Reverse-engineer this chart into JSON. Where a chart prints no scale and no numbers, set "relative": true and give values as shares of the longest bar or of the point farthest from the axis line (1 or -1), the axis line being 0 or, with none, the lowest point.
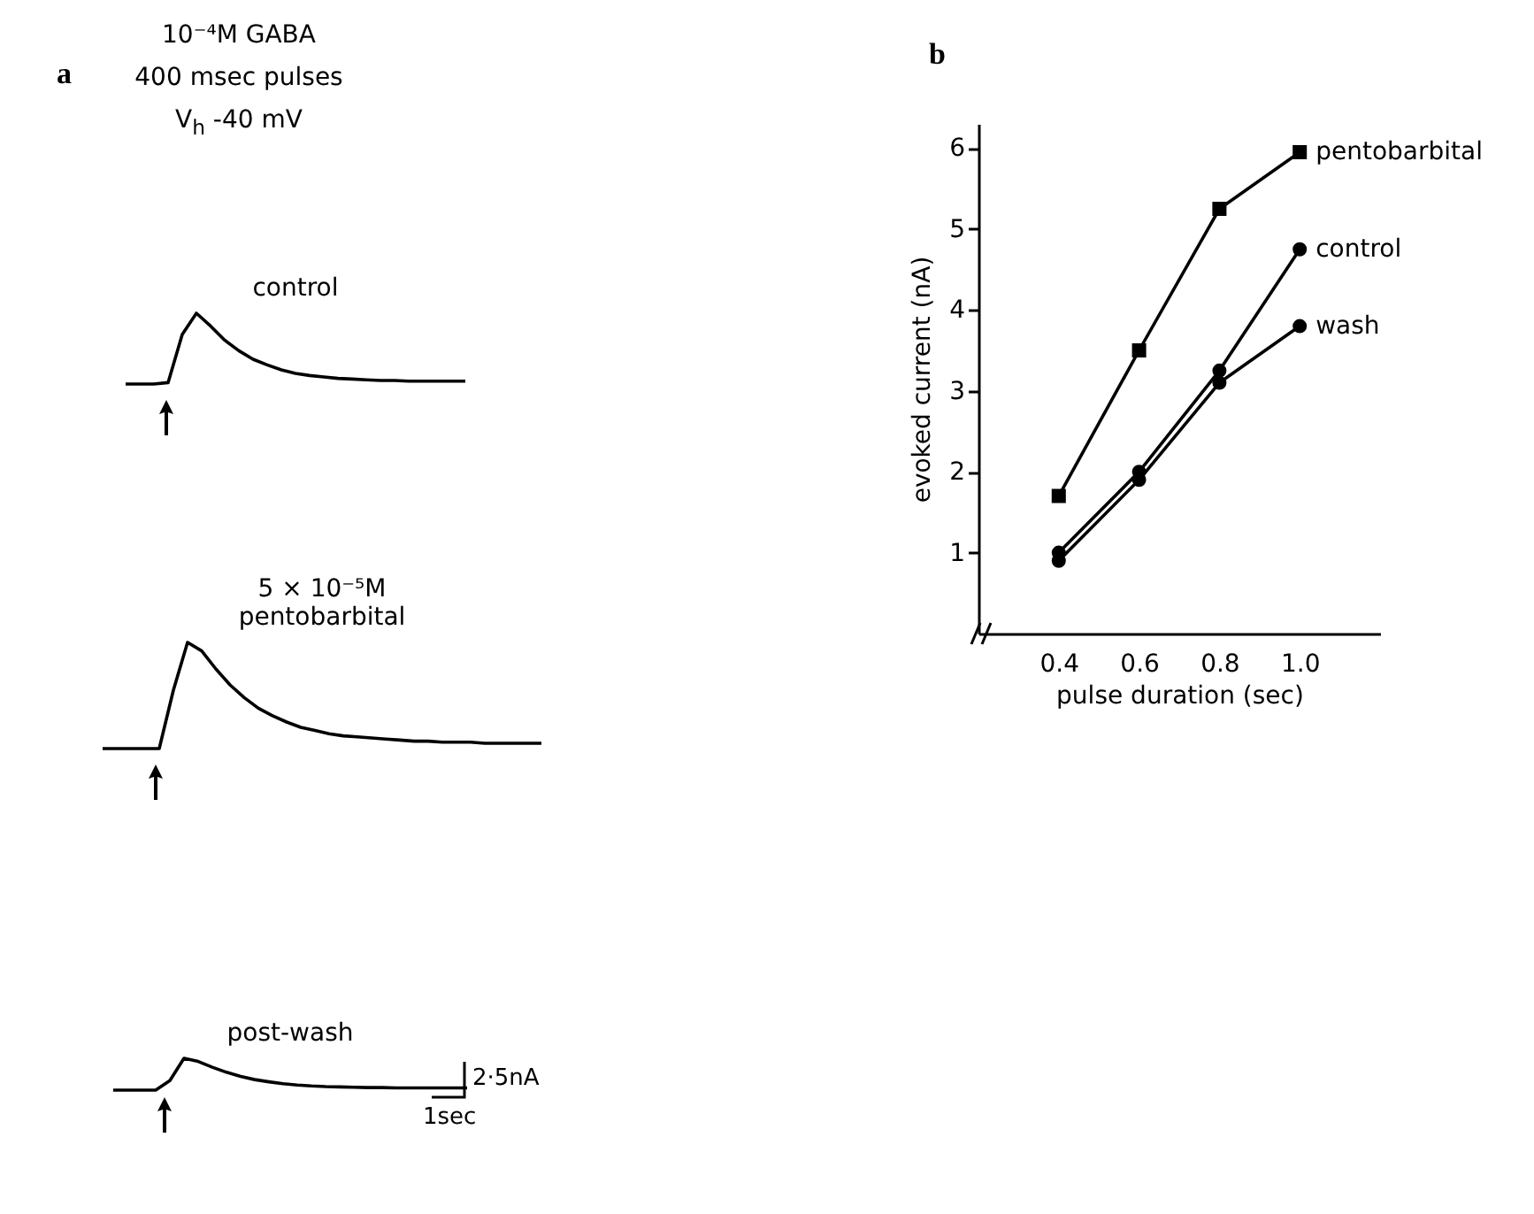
{
  "chart_data": [
    {
      "type": "other",
      "title": "a",
      "annotations": [
        "10⁻⁴M  GABA",
        "400 msec pulses",
        "V$_{h}$  -40 mV"
      ]
    },
    {
      "type": "line",
      "relative": true,
      "title": "control",
      "color": "#000000",
      "categories": [
        null,
        null,
        null,
        null,
        null,
        null,
        null,
        null,
        null,
        null,
        null,
        null,
        null,
        null,
        null,
        null,
        null,
        null,
        null,
        null,
        null,
        null,
        null,
        null,
        null
      ],
      "values": [
        0,
        0,
        0,
        0.02,
        0.7,
        1,
        0.82,
        0.62,
        0.47,
        0.35,
        0.27,
        0.2,
        0.15,
        0.12,
        0.1,
        0.08,
        0.07,
        0.06,
        0.05,
        0.05,
        0.04,
        0.04,
        0.04,
        0.04,
        0.04
      ]
    },
    {
      "type": "line",
      "relative": true,
      "title": "5 × 10⁻⁵M",
      "subtitle": "pentobarbital",
      "color": "#000000",
      "categories": [
        null,
        null,
        null,
        null,
        null,
        null,
        null,
        null,
        null,
        null,
        null,
        null,
        null,
        null,
        null,
        null,
        null,
        null,
        null,
        null,
        null,
        null,
        null,
        null,
        null,
        null,
        null,
        null,
        null,
        null,
        null,
        null
      ],
      "values": [
        0,
        0,
        0,
        0,
        0,
        0.55,
        1,
        0.92,
        0.75,
        0.6,
        0.48,
        0.38,
        0.31,
        0.25,
        0.2,
        0.17,
        0.14,
        0.12,
        0.11,
        0.1,
        0.09,
        0.08,
        0.07,
        0.07,
        0.06,
        0.06,
        0.06,
        0.05,
        0.05,
        0.05,
        0.05,
        0.05
      ]
    },
    {
      "type": "line",
      "relative": true,
      "title": "post-wash",
      "color": "#000000",
      "annotations": [
        "2·5nA",
        "1sec"
      ],
      "categories": [
        null,
        null,
        null,
        null,
        null,
        null,
        null,
        null,
        null,
        null,
        null,
        null,
        null,
        null,
        null,
        null,
        null,
        null,
        null,
        null,
        null,
        null,
        null,
        null,
        null,
        null
      ],
      "values": [
        0,
        0,
        0,
        0,
        0.3,
        1,
        0.9,
        0.72,
        0.56,
        0.43,
        0.33,
        0.26,
        0.2,
        0.16,
        0.13,
        0.11,
        0.1,
        0.09,
        0.08,
        0.08,
        0.07,
        0.07,
        0.07,
        0.07,
        0.07,
        0.07
      ]
    },
    {
      "type": "line",
      "title": "b",
      "xlabel": "pulse duration (sec)",
      "ylabel": "evoked current (nA)",
      "x": [
        0.4,
        0.6,
        0.8,
        1.0
      ],
      "xlim": [
        0.2,
        1.2
      ],
      "xticks": [
        0.4,
        0.6,
        0.8,
        {
          "value": 1,
          "label": "1.0"
        }
      ],
      "ylim": [
        0,
        6.3
      ],
      "yticks": [
        1,
        2,
        3,
        4,
        5,
        6
      ],
      "series": [
        {
          "name": "pentobarbital",
          "color": "#000000",
          "marker": "square",
          "values": [
            1.7,
            3.5,
            5.25,
            5.95
          ]
        },
        {
          "name": "control",
          "color": "#000000",
          "marker": "circle",
          "values": [
            1.0,
            2.0,
            3.25,
            4.75
          ]
        },
        {
          "name": "wash",
          "color": "#000000",
          "marker": "circle",
          "values": [
            0.9,
            1.9,
            3.1,
            3.8
          ]
        }
      ]
    }
  ]
}
